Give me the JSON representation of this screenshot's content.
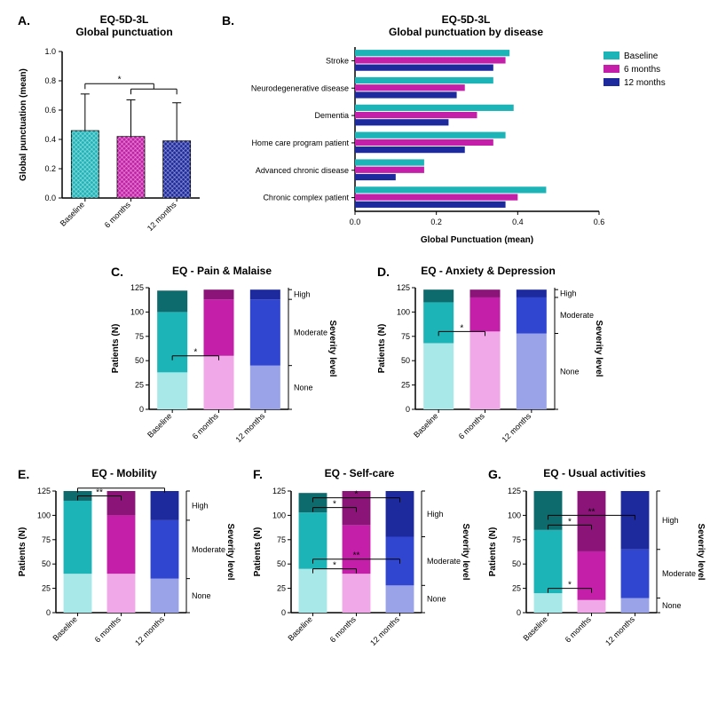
{
  "colors": {
    "teal": "#1db4b8",
    "magenta": "#c41fa8",
    "navy": "#1d2a9e",
    "teal_light": "#a8e8e8",
    "magenta_light": "#e89ae0",
    "navy_light": "#9ba3e8",
    "teal_mid": "#3fc4c8",
    "magenta_mid": "#d048c0",
    "navy_mid": "#4055d8",
    "axis": "#000000"
  },
  "panelA": {
    "label": "A.",
    "title": "EQ-5D-3L",
    "subtitle": "Global punctuation",
    "ylabel": "Global punctuation (mean)",
    "ylim": [
      0,
      1.0
    ],
    "yticks": [
      0.0,
      0.2,
      0.4,
      0.6,
      0.8,
      1.0
    ],
    "categories": [
      "Baseline",
      "6 months",
      "12 months"
    ],
    "values": [
      0.46,
      0.42,
      0.39
    ],
    "errors": [
      0.25,
      0.25,
      0.26
    ],
    "colors": [
      "#1db4b8",
      "#c41fa8",
      "#1d2a9e"
    ],
    "sig": "*"
  },
  "panelB": {
    "label": "B.",
    "title": "EQ-5D-3L",
    "subtitle": "Global punctuation by disease",
    "xlabel": "Global Punctuation (mean)",
    "xlim": [
      0.0,
      0.6
    ],
    "xticks": [
      0.0,
      0.2,
      0.4,
      0.6
    ],
    "categories": [
      "Stroke",
      "Neurodegenerative disease",
      "Dementia",
      "Home care program patient",
      "Advanced chronic disease",
      "Chronic complex patient"
    ],
    "series": [
      {
        "name": "Baseline",
        "color": "#1db4b8",
        "values": [
          0.38,
          0.34,
          0.39,
          0.37,
          0.17,
          0.47
        ]
      },
      {
        "name": "6 months",
        "color": "#c41fa8",
        "values": [
          0.37,
          0.27,
          0.3,
          0.34,
          0.17,
          0.4
        ]
      },
      {
        "name": "12 months",
        "color": "#1d2a9e",
        "values": [
          0.34,
          0.25,
          0.23,
          0.27,
          0.1,
          0.37
        ]
      }
    ]
  },
  "stacked": {
    "ylim": [
      0,
      125
    ],
    "yticks": [
      0,
      25,
      50,
      75,
      100,
      125
    ],
    "ylabel": "Patients (N)",
    "severity_side": "Severity level",
    "severity": [
      "High",
      "Moderate",
      "None"
    ],
    "categories": [
      "Baseline",
      "6 months",
      "12 months"
    ],
    "colorsets": [
      {
        "high": "#0d6a6d",
        "mod": "#1db4b8",
        "none": "#a8e8e8"
      },
      {
        "high": "#8a1478",
        "mod": "#c41fa8",
        "none": "#f0a8e8"
      },
      {
        "high": "#1d2a9e",
        "mod": "#3045d0",
        "none": "#9ba3e8"
      }
    ]
  },
  "panelC": {
    "label": "C.",
    "title": "EQ - Pain & Malaise",
    "data": [
      {
        "none": 38,
        "mod": 62,
        "high": 22
      },
      {
        "none": 55,
        "mod": 58,
        "high": 10
      },
      {
        "none": 45,
        "mod": 68,
        "high": 10
      }
    ],
    "sig": [
      {
        "from": 0,
        "to": 1,
        "y": 55,
        "label": "*"
      }
    ]
  },
  "panelD": {
    "label": "D.",
    "title": "EQ - Anxiety & Depression",
    "data": [
      {
        "none": 68,
        "mod": 42,
        "high": 13
      },
      {
        "none": 80,
        "mod": 35,
        "high": 8
      },
      {
        "none": 78,
        "mod": 37,
        "high": 8
      }
    ],
    "sig": [
      {
        "from": 0,
        "to": 1,
        "y": 80,
        "label": "*"
      }
    ]
  },
  "panelE": {
    "label": "E.",
    "title": "EQ - Mobility",
    "data": [
      {
        "none": 40,
        "mod": 75,
        "high": 10
      },
      {
        "none": 40,
        "mod": 60,
        "high": 25
      },
      {
        "none": 35,
        "mod": 60,
        "high": 30
      }
    ],
    "sig": [
      {
        "from": 0,
        "to": 1,
        "y": 120,
        "label": "**"
      },
      {
        "from": 0,
        "to": 2,
        "y": 128,
        "label": "**"
      }
    ]
  },
  "panelF": {
    "label": "F.",
    "title": "EQ - Self-care",
    "data": [
      {
        "none": 45,
        "mod": 58,
        "high": 20
      },
      {
        "none": 40,
        "mod": 50,
        "high": 35
      },
      {
        "none": 28,
        "mod": 50,
        "high": 47
      }
    ],
    "sig": [
      {
        "from": 0,
        "to": 1,
        "y": 45,
        "label": "*"
      },
      {
        "from": 0,
        "to": 2,
        "y": 55,
        "label": "**"
      },
      {
        "from": 0,
        "to": 1,
        "y": 108,
        "label": "*"
      },
      {
        "from": 0,
        "to": 2,
        "y": 118,
        "label": "*"
      }
    ]
  },
  "panelG": {
    "label": "G.",
    "title": "EQ - Usual activities",
    "data": [
      {
        "none": 20,
        "mod": 65,
        "high": 40
      },
      {
        "none": 13,
        "mod": 50,
        "high": 62
      },
      {
        "none": 15,
        "mod": 50,
        "high": 60
      }
    ],
    "sig": [
      {
        "from": 0,
        "to": 1,
        "y": 25,
        "label": "*"
      },
      {
        "from": 0,
        "to": 1,
        "y": 90,
        "label": "*"
      },
      {
        "from": 0,
        "to": 2,
        "y": 100,
        "label": "**"
      }
    ]
  }
}
